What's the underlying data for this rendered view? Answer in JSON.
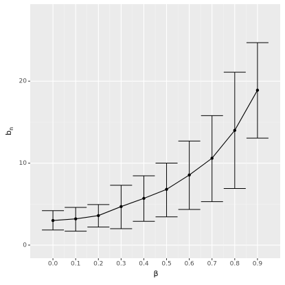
{
  "chart_data": {
    "type": "errorbar-line",
    "xlabel": "β",
    "ylabel": "b",
    "ylabel_subscript": "n",
    "x": [
      0,
      0.1,
      0.2,
      0.3,
      0.4,
      0.5,
      0.6,
      0.7,
      0.8,
      0.9
    ],
    "series": [
      {
        "color": "#000000",
        "values": [
          3.0,
          3.2,
          3.6,
          4.7,
          5.7,
          6.8,
          8.55,
          10.6,
          14.0,
          18.9
        ],
        "lower": [
          1.85,
          1.7,
          2.2,
          2.0,
          2.9,
          3.45,
          4.35,
          5.3,
          6.9,
          13.05
        ],
        "upper": [
          4.2,
          4.6,
          4.95,
          7.3,
          8.45,
          10.0,
          12.7,
          15.8,
          21.1,
          24.7
        ]
      }
    ],
    "xlim": [
      -0.1,
      1.0
    ],
    "ylim": [
      -1.6,
      29.4
    ],
    "xticks": [
      {
        "value": 0,
        "label": "0.0"
      },
      0.1,
      0.2,
      0.3,
      0.4,
      0.5,
      0.6,
      0.7,
      0.8,
      0.9
    ],
    "yticks": [
      0,
      10,
      20
    ],
    "grid": true
  }
}
